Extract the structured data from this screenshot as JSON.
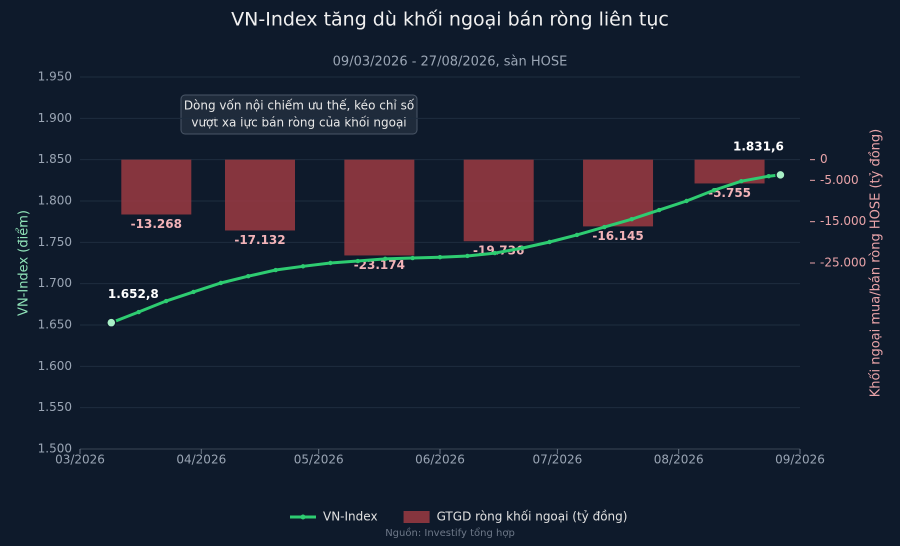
{
  "chart_data": {
    "type": "line-bar",
    "title": "VN-Index tăng dù khối ngoại bán ròng liên tục",
    "subtitle": "09/03/2026 - 27/08/2026, sàn HOSE",
    "ylabel": "VN-Index (điểm)",
    "y2label": "Khối ngoại mua/bán ròng HOSE (tỷ đồng)",
    "source": "Nguồn: Investify tổng hợp",
    "annotation": [
      "Dòng vốn nội chiếm ưu thế, kéo chỉ số",
      "vượt xa lực bán ròng của khối ngoại"
    ],
    "xlim": [
      "2026-03-01",
      "2026-09-01"
    ],
    "xticks": [
      {
        "value": "2026-03-01",
        "label": "03/2026"
      },
      {
        "value": "2026-04-01",
        "label": "04/2026"
      },
      {
        "value": "2026-05-01",
        "label": "05/2026"
      },
      {
        "value": "2026-06-01",
        "label": "06/2026"
      },
      {
        "value": "2026-07-01",
        "label": "07/2026"
      },
      {
        "value": "2026-08-01",
        "label": "08/2026"
      },
      {
        "value": "2026-09-01",
        "label": "09/2026"
      }
    ],
    "ylim": [
      1500,
      1950
    ],
    "yticks": [
      {
        "value": 1500,
        "label": "1.500"
      },
      {
        "value": 1550,
        "label": "1.550"
      },
      {
        "value": 1600,
        "label": "1.600"
      },
      {
        "value": 1650,
        "label": "1.650"
      },
      {
        "value": 1700,
        "label": "1.700"
      },
      {
        "value": 1750,
        "label": "1.750"
      },
      {
        "value": 1800,
        "label": "1.800"
      },
      {
        "value": 1850,
        "label": "1.850"
      },
      {
        "value": 1900,
        "label": "1.900"
      },
      {
        "value": 1950,
        "label": "1.950"
      }
    ],
    "y2lim": [
      -70000,
      20000
    ],
    "y2ticks": [
      0,
      {
        "value": -5000,
        "label": "-5.000"
      },
      {
        "value": -15000,
        "label": "-15.000"
      },
      {
        "value": -25000,
        "label": "-25.000"
      }
    ],
    "grid": true,
    "series": [
      {
        "name": "VN-Index",
        "type": "line",
        "color": "#2ecc71",
        "x": [
          "2026-03-09",
          "2026-03-16",
          "2026-03-23",
          "2026-03-30",
          "2026-04-06",
          "2026-04-13",
          "2026-04-20",
          "2026-04-27",
          "2026-05-04",
          "2026-05-11",
          "2026-05-18",
          "2026-05-25",
          "2026-06-01",
          "2026-06-08",
          "2026-06-15",
          "2026-06-22",
          "2026-06-29",
          "2026-07-06",
          "2026-07-13",
          "2026-07-20",
          "2026-07-27",
          "2026-08-03",
          "2026-08-10",
          "2026-08-17",
          "2026-08-24",
          "2026-08-27"
        ],
        "values": [
          1652.8,
          1665.7,
          1679,
          1690,
          1700.8,
          1709,
          1716.5,
          1721,
          1725,
          1727.4,
          1730,
          1731,
          1732,
          1733.5,
          1737,
          1743,
          1750.4,
          1759,
          1768.5,
          1778,
          1789,
          1800,
          1813,
          1824,
          1830,
          1831.6
        ],
        "value_labels": [
          "1.652,8",
          null,
          null,
          null,
          null,
          null,
          null,
          null,
          null,
          null,
          null,
          null,
          null,
          null,
          null,
          null,
          null,
          null,
          null,
          null,
          null,
          null,
          null,
          null,
          null,
          "1.831,6"
        ]
      },
      {
        "name": "GTGD ròng khối ngoại (tỷ đồng)",
        "type": "bar",
        "axis": "y2",
        "color": "#9b3b42",
        "categories": [
          "03/2026",
          "04/2026",
          "05/2026",
          "06/2026",
          "07/2026",
          "08/2026"
        ],
        "values": [
          -13268,
          -17132,
          -23174,
          -19736,
          -16145,
          -5755
        ],
        "value_labels": [
          "-13.268",
          "-17.132",
          "-23.174",
          "-19.736",
          "-16.145",
          "-5.755"
        ]
      }
    ]
  }
}
